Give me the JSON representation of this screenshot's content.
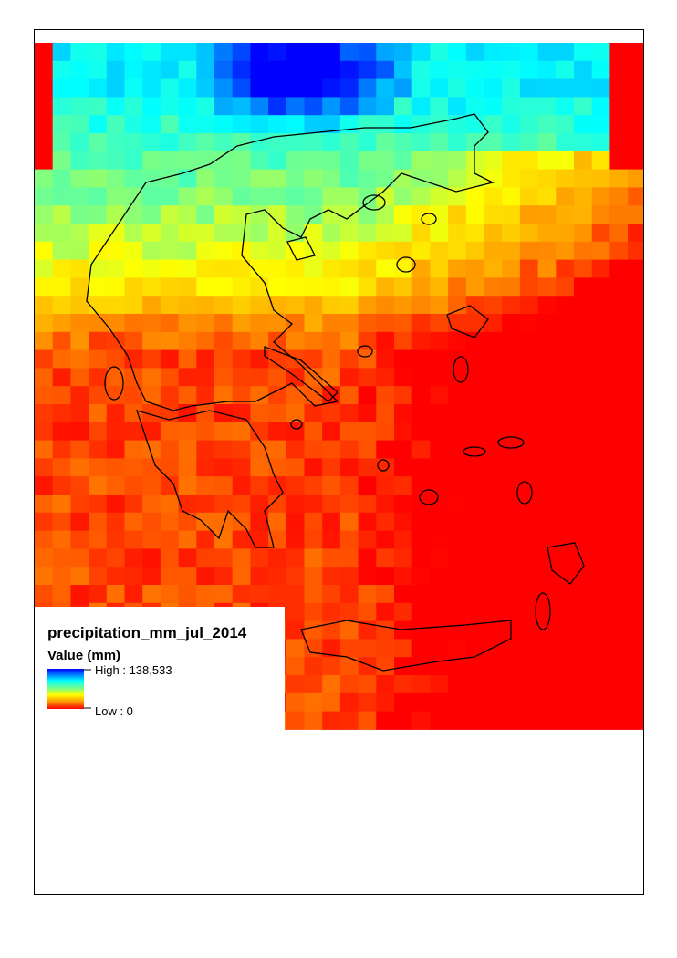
{
  "legend": {
    "title": "precipitation_mm_jul_2014",
    "subtitle": "Value (mm)",
    "high": "High : 138,533",
    "low": "Low : 0"
  }
}
